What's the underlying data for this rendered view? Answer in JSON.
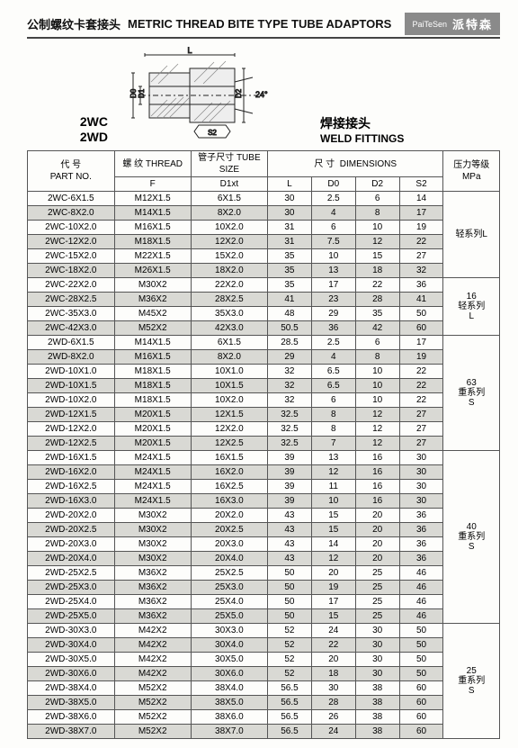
{
  "header": {
    "title_cn": "公制螺纹卡套接头",
    "title_en": "METRIC THREAD BITE TYPE TUBE ADAPTORS",
    "brand_en": "PaiTeSen",
    "brand_cn": "派特森"
  },
  "models": {
    "m1": "2WC",
    "m2": "2WD"
  },
  "weld": {
    "cn": "焊接接头",
    "en": "WELD FITTINGS"
  },
  "diagram_labels": {
    "L": "L",
    "D1": "D1",
    "D0": "D0",
    "D2": "D2",
    "S2": "S2",
    "angle": "24°"
  },
  "thead": {
    "part_cn": "代 号",
    "part_en": "PART NO.",
    "thread_cn": "螺 纹",
    "thread_en": "THREAD",
    "thread_sub": "F",
    "tube_cn": "管子尺寸",
    "tube_en": "TUBE SIZE",
    "tube_sub": "D1xt",
    "dim_cn": "尺 寸",
    "dim_en": "DIMENSIONS",
    "dim_L": "L",
    "dim_D0": "D0",
    "dim_D2": "D2",
    "dim_S2": "S2",
    "press_cn": "压力等级",
    "press_en": "MPa"
  },
  "groups": [
    {
      "press": "轻系列L",
      "rows": [
        {
          "p": "2WC-6X1.5",
          "f": "M12X1.5",
          "d": "6X1.5",
          "l": "30",
          "d0": "2.5",
          "d2": "6",
          "s2": "14"
        },
        {
          "p": "2WC-8X2.0",
          "f": "M14X1.5",
          "d": "8X2.0",
          "l": "30",
          "d0": "4",
          "d2": "8",
          "s2": "17"
        },
        {
          "p": "2WC-10X2.0",
          "f": "M16X1.5",
          "d": "10X2.0",
          "l": "31",
          "d0": "6",
          "d2": "10",
          "s2": "19"
        },
        {
          "p": "2WC-12X2.0",
          "f": "M18X1.5",
          "d": "12X2.0",
          "l": "31",
          "d0": "7.5",
          "d2": "12",
          "s2": "22"
        },
        {
          "p": "2WC-15X2.0",
          "f": "M22X1.5",
          "d": "15X2.0",
          "l": "35",
          "d0": "10",
          "d2": "15",
          "s2": "27"
        },
        {
          "p": "2WC-18X2.0",
          "f": "M26X1.5",
          "d": "18X2.0",
          "l": "35",
          "d0": "13",
          "d2": "18",
          "s2": "32"
        }
      ]
    },
    {
      "press": "16\n轻系列\nL",
      "rows": [
        {
          "p": "2WC-22X2.0",
          "f": "M30X2",
          "d": "22X2.0",
          "l": "35",
          "d0": "17",
          "d2": "22",
          "s2": "36"
        },
        {
          "p": "2WC-28X2.5",
          "f": "M36X2",
          "d": "28X2.5",
          "l": "41",
          "d0": "23",
          "d2": "28",
          "s2": "41"
        },
        {
          "p": "2WC-35X3.0",
          "f": "M45X2",
          "d": "35X3.0",
          "l": "48",
          "d0": "29",
          "d2": "35",
          "s2": "50"
        },
        {
          "p": "2WC-42X3.0",
          "f": "M52X2",
          "d": "42X3.0",
          "l": "50.5",
          "d0": "36",
          "d2": "42",
          "s2": "60"
        }
      ]
    },
    {
      "press": "63\n重系列\nS",
      "rows": [
        {
          "p": "2WD-6X1.5",
          "f": "M14X1.5",
          "d": "6X1.5",
          "l": "28.5",
          "d0": "2.5",
          "d2": "6",
          "s2": "17"
        },
        {
          "p": "2WD-8X2.0",
          "f": "M16X1.5",
          "d": "8X2.0",
          "l": "29",
          "d0": "4",
          "d2": "8",
          "s2": "19"
        },
        {
          "p": "2WD-10X1.0",
          "f": "M18X1.5",
          "d": "10X1.0",
          "l": "32",
          "d0": "6.5",
          "d2": "10",
          "s2": "22"
        },
        {
          "p": "2WD-10X1.5",
          "f": "M18X1.5",
          "d": "10X1.5",
          "l": "32",
          "d0": "6.5",
          "d2": "10",
          "s2": "22"
        },
        {
          "p": "2WD-10X2.0",
          "f": "M18X1.5",
          "d": "10X2.0",
          "l": "32",
          "d0": "6",
          "d2": "10",
          "s2": "22"
        },
        {
          "p": "2WD-12X1.5",
          "f": "M20X1.5",
          "d": "12X1.5",
          "l": "32.5",
          "d0": "8",
          "d2": "12",
          "s2": "27"
        },
        {
          "p": "2WD-12X2.0",
          "f": "M20X1.5",
          "d": "12X2.0",
          "l": "32.5",
          "d0": "8",
          "d2": "12",
          "s2": "27"
        },
        {
          "p": "2WD-12X2.5",
          "f": "M20X1.5",
          "d": "12X2.5",
          "l": "32.5",
          "d0": "7",
          "d2": "12",
          "s2": "27"
        }
      ]
    },
    {
      "press": "40\n重系列\nS",
      "rows": [
        {
          "p": "2WD-16X1.5",
          "f": "M24X1.5",
          "d": "16X1.5",
          "l": "39",
          "d0": "13",
          "d2": "16",
          "s2": "30"
        },
        {
          "p": "2WD-16X2.0",
          "f": "M24X1.5",
          "d": "16X2.0",
          "l": "39",
          "d0": "12",
          "d2": "16",
          "s2": "30"
        },
        {
          "p": "2WD-16X2.5",
          "f": "M24X1.5",
          "d": "16X2.5",
          "l": "39",
          "d0": "11",
          "d2": "16",
          "s2": "30"
        },
        {
          "p": "2WD-16X3.0",
          "f": "M24X1.5",
          "d": "16X3.0",
          "l": "39",
          "d0": "10",
          "d2": "16",
          "s2": "30"
        },
        {
          "p": "2WD-20X2.0",
          "f": "M30X2",
          "d": "20X2.0",
          "l": "43",
          "d0": "15",
          "d2": "20",
          "s2": "36"
        },
        {
          "p": "2WD-20X2.5",
          "f": "M30X2",
          "d": "20X2.5",
          "l": "43",
          "d0": "15",
          "d2": "20",
          "s2": "36"
        },
        {
          "p": "2WD-20X3.0",
          "f": "M30X2",
          "d": "20X3.0",
          "l": "43",
          "d0": "14",
          "d2": "20",
          "s2": "36"
        },
        {
          "p": "2WD-20X4.0",
          "f": "M30X2",
          "d": "20X4.0",
          "l": "43",
          "d0": "12",
          "d2": "20",
          "s2": "36"
        },
        {
          "p": "2WD-25X2.5",
          "f": "M36X2",
          "d": "25X2.5",
          "l": "50",
          "d0": "20",
          "d2": "25",
          "s2": "46"
        },
        {
          "p": "2WD-25X3.0",
          "f": "M36X2",
          "d": "25X3.0",
          "l": "50",
          "d0": "19",
          "d2": "25",
          "s2": "46"
        },
        {
          "p": "2WD-25X4.0",
          "f": "M36X2",
          "d": "25X4.0",
          "l": "50",
          "d0": "17",
          "d2": "25",
          "s2": "46"
        },
        {
          "p": "2WD-25X5.0",
          "f": "M36X2",
          "d": "25X5.0",
          "l": "50",
          "d0": "15",
          "d2": "25",
          "s2": "46"
        }
      ]
    },
    {
      "press": "25\n重系列\nS",
      "rows": [
        {
          "p": "2WD-30X3.0",
          "f": "M42X2",
          "d": "30X3.0",
          "l": "52",
          "d0": "24",
          "d2": "30",
          "s2": "50"
        },
        {
          "p": "2WD-30X4.0",
          "f": "M42X2",
          "d": "30X4.0",
          "l": "52",
          "d0": "22",
          "d2": "30",
          "s2": "50"
        },
        {
          "p": "2WD-30X5.0",
          "f": "M42X2",
          "d": "30X5.0",
          "l": "52",
          "d0": "20",
          "d2": "30",
          "s2": "50"
        },
        {
          "p": "2WD-30X6.0",
          "f": "M42X2",
          "d": "30X6.0",
          "l": "52",
          "d0": "18",
          "d2": "30",
          "s2": "50"
        },
        {
          "p": "2WD-38X4.0",
          "f": "M52X2",
          "d": "38X4.0",
          "l": "56.5",
          "d0": "30",
          "d2": "38",
          "s2": "60"
        },
        {
          "p": "2WD-38X5.0",
          "f": "M52X2",
          "d": "38X5.0",
          "l": "56.5",
          "d0": "28",
          "d2": "38",
          "s2": "60"
        },
        {
          "p": "2WD-38X6.0",
          "f": "M52X2",
          "d": "38X6.0",
          "l": "56.5",
          "d0": "26",
          "d2": "38",
          "s2": "60"
        },
        {
          "p": "2WD-38X7.0",
          "f": "M52X2",
          "d": "38X7.0",
          "l": "56.5",
          "d0": "24",
          "d2": "38",
          "s2": "60"
        }
      ]
    }
  ]
}
